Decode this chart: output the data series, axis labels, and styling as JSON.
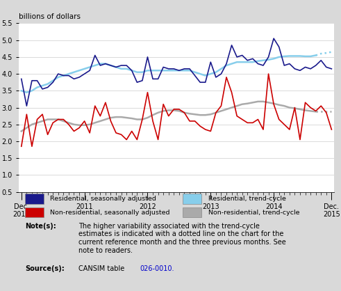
{
  "title_ylabel": "billions of dollars",
  "bg_color": "#d9d9d9",
  "chart_bg": "#ffffff",
  "ylim": [
    0.5,
    5.5
  ],
  "yticks": [
    0.5,
    1.0,
    1.5,
    2.0,
    2.5,
    3.0,
    3.5,
    4.0,
    4.5,
    5.0,
    5.5
  ],
  "residential_sa": [
    3.85,
    3.05,
    3.8,
    3.8,
    3.55,
    3.6,
    3.75,
    4.0,
    3.95,
    3.95,
    3.85,
    3.9,
    4.0,
    4.1,
    4.55,
    4.25,
    4.3,
    4.25,
    4.2,
    4.25,
    4.25,
    4.1,
    3.75,
    3.8,
    4.5,
    3.85,
    3.85,
    4.2,
    4.15,
    4.15,
    4.1,
    4.15,
    4.15,
    3.95,
    3.75,
    3.75,
    4.35,
    3.9,
    4.0,
    4.3,
    4.85,
    4.5,
    4.55,
    4.4,
    4.45,
    4.3,
    4.25,
    4.5,
    5.05,
    4.8,
    4.25,
    4.3,
    4.15,
    4.1,
    4.2,
    4.15,
    4.25,
    4.4,
    4.2,
    4.15
  ],
  "residential_tc": [
    3.5,
    3.45,
    3.5,
    3.6,
    3.65,
    3.7,
    3.8,
    3.9,
    3.95,
    4.0,
    4.05,
    4.1,
    4.15,
    4.2,
    4.25,
    4.3,
    4.3,
    4.25,
    4.2,
    4.15,
    4.15,
    4.1,
    4.05,
    4.05,
    4.1,
    4.1,
    4.1,
    4.1,
    4.1,
    4.1,
    4.1,
    4.1,
    4.1,
    4.05,
    4.0,
    3.95,
    4.0,
    4.05,
    4.15,
    4.25,
    4.3,
    4.35,
    4.35,
    4.35,
    4.35,
    4.38,
    4.4,
    4.42,
    4.45,
    4.5,
    4.52,
    4.53,
    4.53,
    4.53,
    4.52,
    4.52,
    4.55,
    4.6,
    4.62,
    4.65
  ],
  "nonresidential_sa": [
    1.85,
    2.8,
    1.85,
    2.65,
    2.8,
    2.2,
    2.55,
    2.65,
    2.65,
    2.5,
    2.3,
    2.4,
    2.6,
    2.25,
    3.05,
    2.75,
    3.15,
    2.6,
    2.25,
    2.2,
    2.05,
    2.3,
    2.05,
    2.65,
    3.45,
    2.6,
    2.05,
    3.1,
    2.75,
    2.95,
    2.95,
    2.85,
    2.6,
    2.6,
    2.45,
    2.35,
    2.3,
    2.85,
    3.05,
    3.9,
    3.45,
    2.75,
    2.65,
    2.55,
    2.55,
    2.65,
    2.35,
    4.0,
    3.1,
    2.65,
    2.5,
    2.35,
    3.0,
    2.05,
    3.15,
    3.0,
    2.9,
    3.05,
    2.85,
    2.35
  ],
  "nonresidential_tc": [
    2.3,
    2.4,
    2.5,
    2.55,
    2.6,
    2.65,
    2.65,
    2.65,
    2.6,
    2.55,
    2.5,
    2.48,
    2.48,
    2.5,
    2.55,
    2.6,
    2.65,
    2.7,
    2.72,
    2.72,
    2.7,
    2.68,
    2.65,
    2.65,
    2.7,
    2.78,
    2.85,
    2.9,
    2.92,
    2.92,
    2.9,
    2.85,
    2.82,
    2.8,
    2.78,
    2.78,
    2.8,
    2.85,
    2.9,
    2.95,
    3.0,
    3.05,
    3.1,
    3.12,
    3.15,
    3.18,
    3.18,
    3.15,
    3.12,
    3.08,
    3.05,
    3.0,
    2.98,
    2.95,
    2.92,
    2.9,
    2.88,
    2.88,
    2.88,
    2.88
  ],
  "color_res_sa": "#1a1a8c",
  "color_res_tc": "#87ceeb",
  "color_nonres_sa": "#cc0000",
  "color_nonres_tc": "#aaaaaa",
  "note_label": "Note(s):",
  "note_text": "The higher variability associated with the trend-cycle\nestimates is indicated with a dotted line on the chart for the\ncurrent reference month and the three previous months. See\nnote to readers.",
  "source_label": "Source(s):",
  "source_text_plain": "CANSIM table ",
  "source_text_link": "026-0010.",
  "legend_labels": [
    "Residential, seasonally adjusted",
    "Residential, trend-cycle",
    "Non-residential, seasonally adjusted",
    "Non-residential, trend-cycle"
  ],
  "n_months": 60,
  "dotted_last_n": 4,
  "major_positions": [
    0,
    12,
    24,
    36,
    48,
    59
  ],
  "major_labels": [
    "Dec.\n2010",
    "2011",
    "2012",
    "2013",
    "2014",
    "Dec.\n2015"
  ]
}
